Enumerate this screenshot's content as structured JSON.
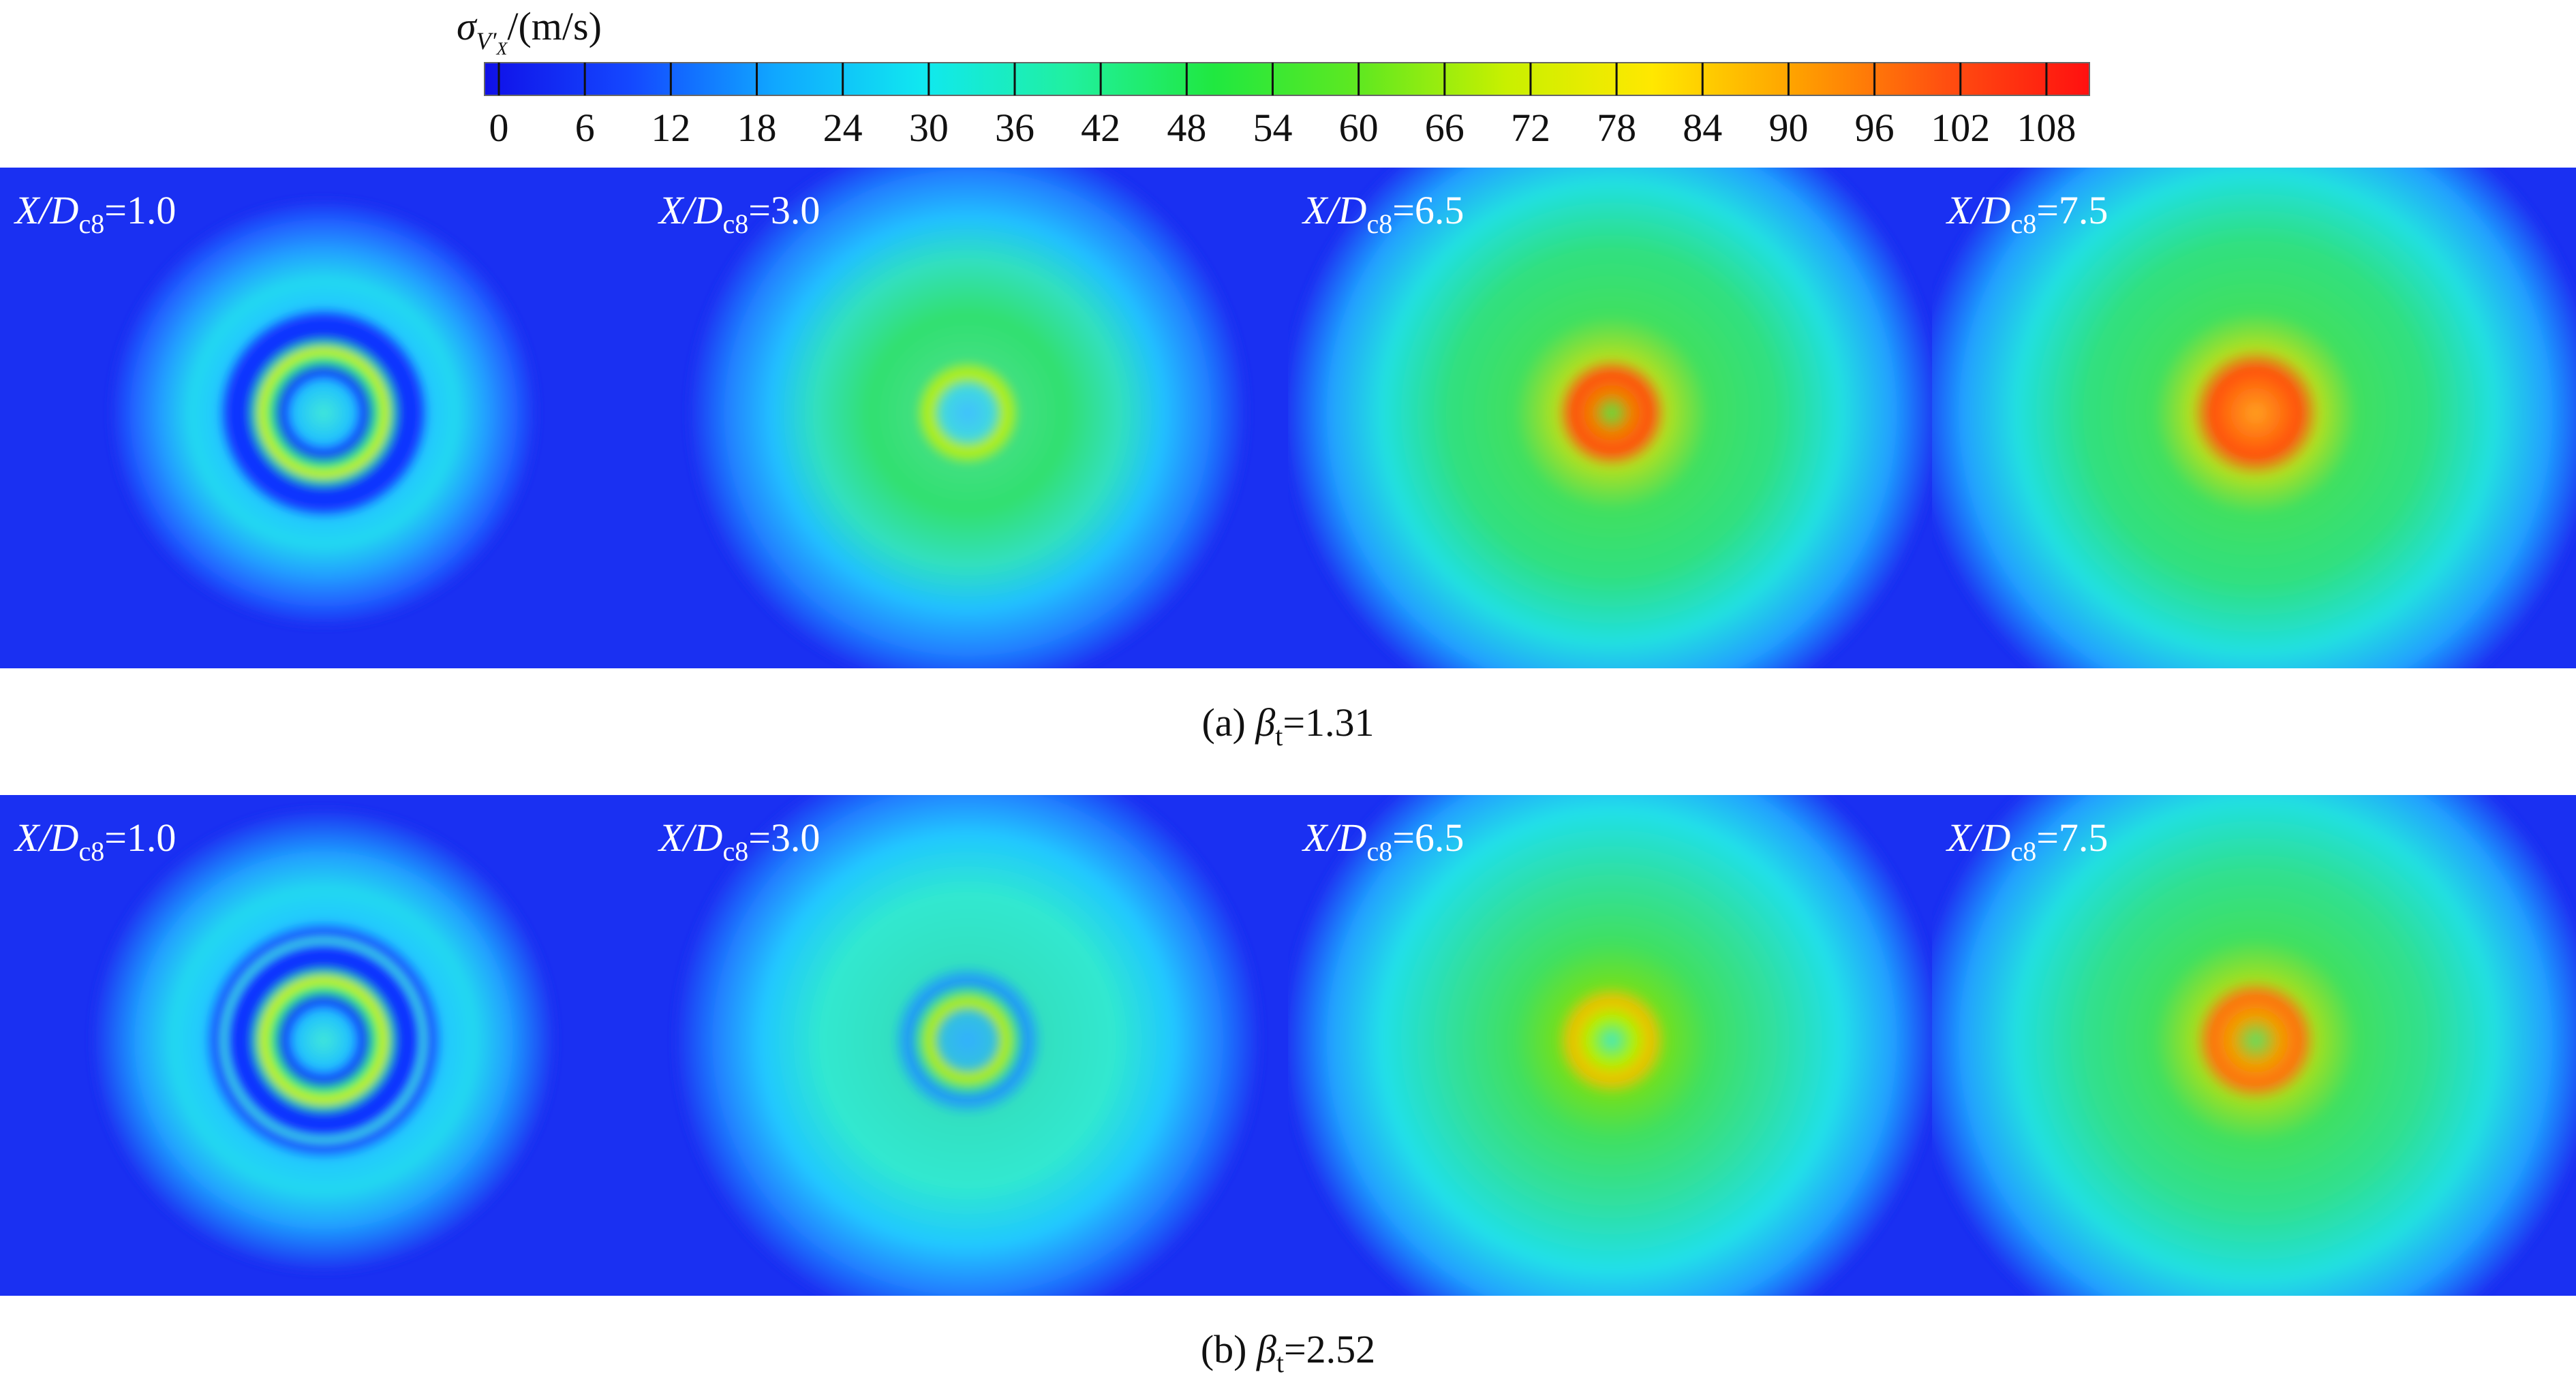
{
  "colorbar": {
    "label": {
      "main": "σ",
      "sub": "V′",
      "subsub": "X",
      "rest": "/(m/s)"
    },
    "lim": [
      -1,
      111
    ],
    "ticks": [
      0,
      6,
      12,
      18,
      24,
      30,
      36,
      42,
      48,
      54,
      60,
      66,
      72,
      78,
      84,
      90,
      96,
      102,
      108
    ],
    "colors": [
      "#1010e8",
      "#1448ff",
      "#10a8ff",
      "#10e8f0",
      "#20f0a0",
      "#20e840",
      "#60e820",
      "#c8f000",
      "#ffe800",
      "#ffa000",
      "#ff5010",
      "#ff1010"
    ]
  },
  "rows": [
    {
      "caption": {
        "prefix": "(a) ",
        "symbol": "β",
        "sub": "t",
        "rest": "=1.31"
      },
      "panels": [
        {
          "var": "X/D",
          "sub": "c8",
          "eq": "=1.0"
        },
        {
          "var": "X/D",
          "sub": "c8",
          "eq": "=3.0"
        },
        {
          "var": "X/D",
          "sub": "c8",
          "eq": "=6.5"
        },
        {
          "var": "X/D",
          "sub": "c8",
          "eq": "=7.5"
        }
      ]
    },
    {
      "caption": {
        "prefix": "(b) ",
        "symbol": "β",
        "sub": "t",
        "rest": "=2.52"
      },
      "panels": [
        {
          "var": "X/D",
          "sub": "c8",
          "eq": "=1.0"
        },
        {
          "var": "X/D",
          "sub": "c8",
          "eq": "=3.0"
        },
        {
          "var": "X/D",
          "sub": "c8",
          "eq": "=6.5"
        },
        {
          "var": "X/D",
          "sub": "c8",
          "eq": "=7.5"
        }
      ]
    }
  ]
}
